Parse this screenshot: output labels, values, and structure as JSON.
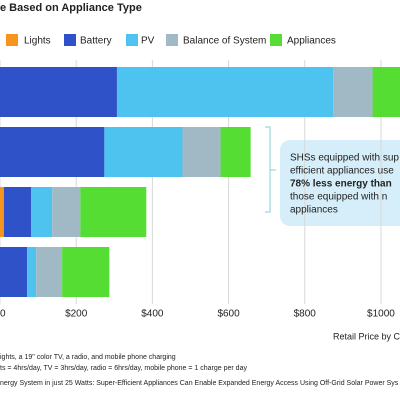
{
  "chart_data": {
    "type": "bar",
    "orientation": "horizontal",
    "stacked": true,
    "title": "e Based on Appliance Type",
    "categories": [
      null,
      null,
      null,
      null
    ],
    "series": [
      {
        "name": "Lights",
        "color": "#f7941d",
        "values": [
          0,
          0,
          10,
          0
        ]
      },
      {
        "name": "Battery",
        "color": "#2f52c8",
        "values": [
          307,
          274,
          72,
          71
        ]
      },
      {
        "name": "PV",
        "color": "#4fc3f0",
        "values": [
          568,
          205,
          55,
          24
        ]
      },
      {
        "name": "Balance of System",
        "color": "#a0b9c4",
        "values": [
          103,
          100,
          74,
          68
        ]
      },
      {
        "name": "Appliances",
        "color": "#55dd33",
        "values": [
          100,
          79,
          173,
          124
        ]
      }
    ],
    "xlim": [
      0,
      1050
    ],
    "xticks": [
      0,
      {
        "value": 200,
        "label": "$200"
      },
      {
        "value": 400,
        "label": "$400"
      },
      {
        "value": 600,
        "label": "$600"
      },
      {
        "value": 800,
        "label": "$800"
      },
      {
        "value": 1000,
        "label": "$1000"
      }
    ],
    "grid": true,
    "x_label": "Retail Price by C",
    "annotation": {
      "lines": [
        "SHSs equipped with sup",
        "efficient appliances use",
        "78% less energy than",
        "those equipped with n",
        "appliances"
      ],
      "bold_line": 2
    },
    "footnotes": [
      "ights, a 19\" color TV, a radio, and mobile phone charging",
      "ts = 4hrs/day, TV = 3hrs/day, radio = 6hrs/day, mobile phone = 1 charge per day",
      "nergy System in just 25 Watts: Super-Efficient Appliances Can Enable Expanded Energy Access Using Off-Grid Solar Power Sys"
    ]
  }
}
